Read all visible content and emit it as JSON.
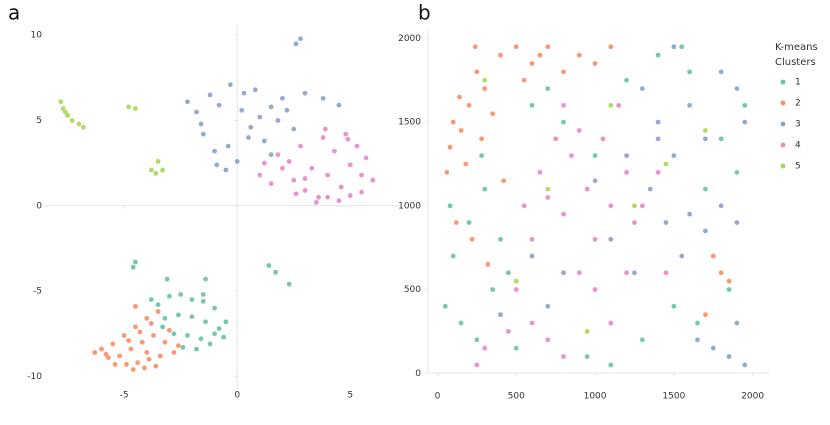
{
  "chart_data": [
    {
      "type": "scatter",
      "panel_label": "a",
      "xlim": [
        -8.5,
        7.2
      ],
      "ylim": [
        -10.8,
        10.6
      ],
      "xticks": [
        -5,
        0,
        5
      ],
      "yticks": [
        -10,
        -5,
        0,
        5,
        10
      ],
      "series": [
        {
          "color": "#8da0cb",
          "x": [
            -2.2,
            -1.8,
            -1.5,
            -1,
            -0.5,
            0,
            0.5,
            1,
            1.5,
            2,
            -1.2,
            -0.3,
            0.8,
            1.8,
            2.5,
            -1.6,
            -0.8,
            0.2,
            1.2,
            2.2,
            0.3,
            -0.4,
            3,
            3.8,
            4.5,
            2.6,
            2.8,
            -0.9,
            1.5,
            0.6
          ],
          "values": [
            6.1,
            5.5,
            4.2,
            3.2,
            2.1,
            2.6,
            4,
            5.2,
            5.8,
            6.3,
            6.5,
            7.1,
            6.8,
            5,
            4.5,
            4.8,
            5.9,
            5.6,
            3.8,
            5.6,
            6.6,
            3.5,
            6.6,
            6.3,
            5.9,
            9.5,
            9.8,
            2.4,
            3,
            4.6
          ]
        },
        {
          "color": "#e78ac3",
          "x": [
            1,
            1.5,
            2,
            2.5,
            3,
            3.5,
            4,
            4.5,
            5,
            5.5,
            6,
            1.8,
            2.8,
            3.8,
            4.8,
            5.7,
            2.3,
            3.3,
            4.3,
            5.3,
            3,
            4,
            5,
            2.6,
            3.6,
            4.6,
            5.5,
            1.2,
            3.9,
            4.9
          ],
          "values": [
            1.8,
            1.3,
            2.2,
            1.5,
            0.9,
            0.2,
            0.5,
            0.3,
            0.6,
            0.8,
            1.5,
            3,
            3.5,
            4,
            4.2,
            2.8,
            2.6,
            2.2,
            3.2,
            3.5,
            1.6,
            1.8,
            2.4,
            0.7,
            0.5,
            1.1,
            1.8,
            2.5,
            4.5,
            3.9
          ]
        },
        {
          "color": "#66c2a5",
          "x": [
            -3.8,
            -3.5,
            -3,
            -2.5,
            -2,
            -1.5,
            -1,
            -0.5,
            -3.2,
            -2.6,
            -2,
            -1.4,
            -0.8,
            -2.8,
            -2.2,
            -1.6,
            -1,
            -2.4,
            -1.8,
            -1.2,
            -0.6,
            -3.3,
            -1.5,
            -4.5,
            -4.6,
            -3.1,
            -1.4,
            1.4,
            1.7,
            2.3
          ],
          "values": [
            -5.5,
            -5.8,
            -5.3,
            -5.2,
            -5.5,
            -5.6,
            -6,
            -6.8,
            -6.6,
            -6.4,
            -6.5,
            -6.8,
            -7.2,
            -7.5,
            -7.6,
            -7.8,
            -7.5,
            -8.3,
            -8.4,
            -8.1,
            -7.7,
            -7.1,
            -5.2,
            -3.3,
            -3.6,
            -4.3,
            -4.3,
            -3.5,
            -3.9,
            -4.6
          ]
        },
        {
          "color": "#fc8d62",
          "x": [
            -6,
            -5.5,
            -5,
            -4.5,
            -4,
            -3.5,
            -3,
            -2.6,
            -5.7,
            -5.2,
            -4.7,
            -4.2,
            -3.7,
            -3.2,
            -2.8,
            -5.4,
            -4.9,
            -4.4,
            -3.9,
            -3.4,
            -4.6,
            -4.1,
            -3.6,
            -5.8,
            -4.8,
            -4.3,
            -3.8,
            -4.5,
            -4,
            -6.3
          ],
          "values": [
            -8.4,
            -8.1,
            -7.6,
            -7.1,
            -6.6,
            -6.2,
            -7.3,
            -8.2,
            -8.9,
            -8.8,
            -8.4,
            -8,
            -7.6,
            -8,
            -8.6,
            -9.3,
            -9.3,
            -9.2,
            -9,
            -8.8,
            -9.6,
            -9.5,
            -9.4,
            -8.7,
            -7.9,
            -7.4,
            -6.9,
            -5.9,
            -8.6,
            -8.6
          ]
        },
        {
          "color": "#a6d854",
          "x": [
            -7.8,
            -7.7,
            -7.5,
            -7.3,
            -7,
            -6.8,
            -7.6,
            -4.8,
            -4.5,
            -3.8,
            -3.5,
            -3.3,
            -3.6
          ],
          "values": [
            6.1,
            5.7,
            5.3,
            5,
            4.8,
            4.6,
            5.5,
            5.8,
            5.7,
            2.1,
            2.6,
            2.1,
            1.9
          ]
        }
      ]
    },
    {
      "type": "scatter",
      "panel_label": "b",
      "legend_title": [
        "K-means",
        "Clusters"
      ],
      "xlim": [
        -60,
        2110
      ],
      "ylim": [
        -40,
        2050
      ],
      "xticks": [
        0,
        500,
        1000,
        1500,
        2000
      ],
      "yticks": [
        0,
        500,
        1000,
        1500,
        2000
      ],
      "series": [
        {
          "name": "1",
          "color": "#66c2a5",
          "x": [
            50,
            150,
            250,
            350,
            450,
            100,
            200,
            300,
            400,
            600,
            700,
            800,
            1000,
            1200,
            1400,
            1600,
            1800,
            1900,
            1700,
            1500,
            1300,
            1650,
            1850,
            950,
            1100,
            500,
            80,
            280,
            1950,
            1550
          ],
          "values": [
            400,
            300,
            200,
            500,
            600,
            700,
            900,
            1100,
            800,
            1600,
            1700,
            1500,
            1300,
            1750,
            1900,
            1800,
            1400,
            1200,
            1100,
            400,
            200,
            300,
            500,
            100,
            50,
            150,
            1000,
            1300,
            1600,
            1950
          ]
        },
        {
          "name": "2",
          "color": "#fc8d62",
          "x": [
            100,
            200,
            300,
            80,
            150,
            250,
            350,
            60,
            180,
            280,
            400,
            500,
            600,
            700,
            800,
            900,
            1000,
            1100,
            120,
            220,
            320,
            140,
            240,
            1750,
            1850,
            1700,
            1800,
            550,
            650,
            420
          ],
          "values": [
            1500,
            1600,
            1700,
            1350,
            1450,
            1800,
            1550,
            1200,
            1250,
            1400,
            1900,
            1950,
            1850,
            1950,
            1800,
            1900,
            1850,
            1950,
            900,
            800,
            650,
            1650,
            1950,
            700,
            550,
            350,
            600,
            1750,
            1900,
            1150
          ]
        },
        {
          "name": "3",
          "color": "#8da0cb",
          "x": [
            1300,
            1400,
            1500,
            1600,
            1700,
            1800,
            1900,
            1950,
            1350,
            1450,
            1550,
            1650,
            1750,
            1850,
            1950,
            1600,
            1700,
            1800,
            1900,
            1250,
            700,
            800,
            600,
            1000,
            1100,
            400,
            1200,
            1500,
            1900,
            1400
          ],
          "values": [
            1700,
            1500,
            1300,
            1600,
            1400,
            1800,
            1700,
            1500,
            1100,
            900,
            700,
            200,
            150,
            100,
            50,
            950,
            850,
            1000,
            300,
            600,
            400,
            600,
            700,
            1150,
            800,
            350,
            1300,
            1950,
            900,
            1400
          ]
        },
        {
          "name": "4",
          "color": "#e78ac3",
          "x": [
            500,
            600,
            700,
            800,
            900,
            1000,
            1100,
            1200,
            550,
            650,
            750,
            850,
            950,
            1050,
            1150,
            1250,
            1300,
            600,
            700,
            800,
            900,
            1000,
            1100,
            1200,
            450,
            1400,
            1450,
            300,
            250,
            800
          ],
          "values": [
            500,
            300,
            200,
            100,
            600,
            800,
            1000,
            1200,
            1000,
            1200,
            1400,
            1300,
            1100,
            1400,
            1600,
            900,
            1000,
            800,
            1050,
            950,
            1450,
            500,
            300,
            600,
            250,
            1200,
            600,
            150,
            50,
            1600
          ]
        },
        {
          "name": "5",
          "color": "#a6d854",
          "x": [
            700,
            1100,
            1250,
            500,
            1450,
            300,
            950,
            1700
          ],
          "values": [
            1100,
            1600,
            1000,
            550,
            1250,
            1750,
            250,
            1450
          ]
        }
      ]
    }
  ]
}
